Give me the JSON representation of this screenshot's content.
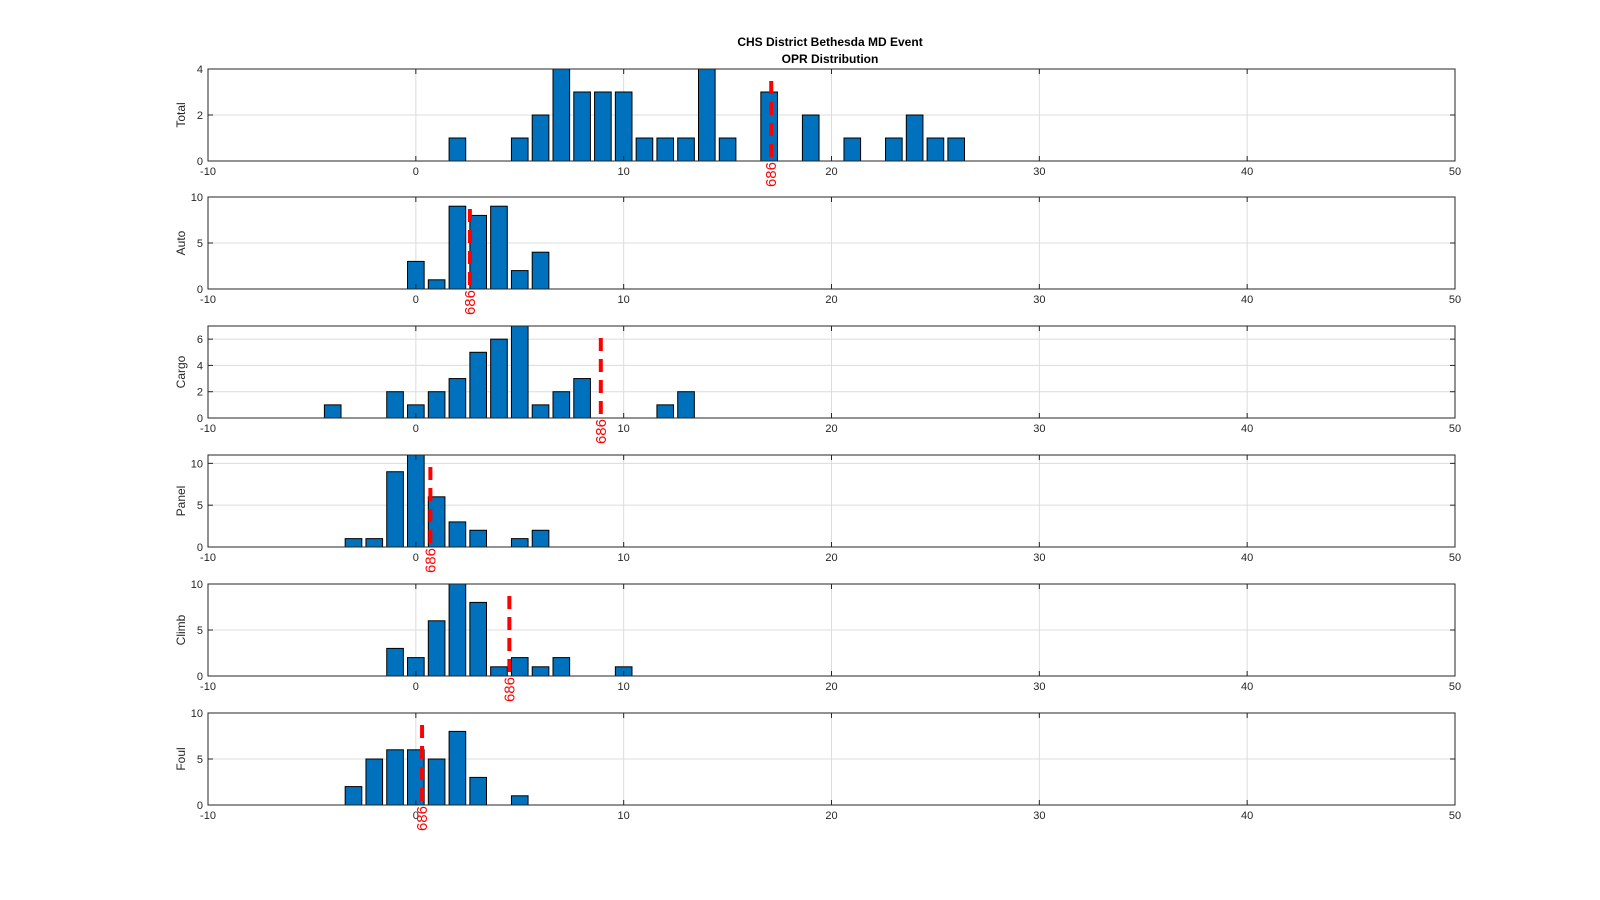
{
  "chart_data": {
    "type": "bar",
    "title": [
      "CHS District Bethesda MD Event",
      "OPR Distribution"
    ],
    "xlim": [
      -10,
      50
    ],
    "xticks": [
      -10,
      0,
      10,
      20,
      30,
      40,
      50
    ],
    "bin_width": 1,
    "grid": "on",
    "bar_color": "#0072bd",
    "marker_color": "#ff0000",
    "marker_label": "686",
    "subplots": [
      {
        "ylabel": "Total",
        "ylim": [
          0,
          4
        ],
        "yticks": [
          0,
          2,
          4
        ],
        "marker_x": 17.1,
        "bars": [
          {
            "x": 2,
            "y": 1
          },
          {
            "x": 5,
            "y": 1
          },
          {
            "x": 6,
            "y": 2
          },
          {
            "x": 7,
            "y": 4
          },
          {
            "x": 8,
            "y": 3
          },
          {
            "x": 9,
            "y": 3
          },
          {
            "x": 10,
            "y": 3
          },
          {
            "x": 11,
            "y": 1
          },
          {
            "x": 12,
            "y": 1
          },
          {
            "x": 13,
            "y": 1
          },
          {
            "x": 14,
            "y": 4
          },
          {
            "x": 15,
            "y": 1
          },
          {
            "x": 17,
            "y": 3
          },
          {
            "x": 19,
            "y": 2
          },
          {
            "x": 21,
            "y": 1
          },
          {
            "x": 23,
            "y": 1
          },
          {
            "x": 24,
            "y": 2
          },
          {
            "x": 25,
            "y": 1
          },
          {
            "x": 26,
            "y": 1
          }
        ]
      },
      {
        "ylabel": "Auto",
        "ylim": [
          0,
          10
        ],
        "yticks": [
          0,
          5,
          10
        ],
        "marker_x": 2.6,
        "bars": [
          {
            "x": 0,
            "y": 3
          },
          {
            "x": 1,
            "y": 1
          },
          {
            "x": 2,
            "y": 9
          },
          {
            "x": 3,
            "y": 8
          },
          {
            "x": 4,
            "y": 9
          },
          {
            "x": 5,
            "y": 2
          },
          {
            "x": 6,
            "y": 4
          }
        ]
      },
      {
        "ylabel": "Cargo",
        "ylim": [
          0,
          7
        ],
        "yticks": [
          0,
          2,
          4,
          6
        ],
        "marker_x": 8.9,
        "bars": [
          {
            "x": -4,
            "y": 1
          },
          {
            "x": -1,
            "y": 2
          },
          {
            "x": 0,
            "y": 1
          },
          {
            "x": 1,
            "y": 2
          },
          {
            "x": 2,
            "y": 3
          },
          {
            "x": 3,
            "y": 5
          },
          {
            "x": 4,
            "y": 6
          },
          {
            "x": 5,
            "y": 7
          },
          {
            "x": 6,
            "y": 1
          },
          {
            "x": 7,
            "y": 2
          },
          {
            "x": 8,
            "y": 3
          },
          {
            "x": 12,
            "y": 1
          },
          {
            "x": 13,
            "y": 2
          }
        ]
      },
      {
        "ylabel": "Panel",
        "ylim": [
          0,
          11
        ],
        "yticks": [
          0,
          5,
          10
        ],
        "marker_x": 0.7,
        "bars": [
          {
            "x": -3,
            "y": 1
          },
          {
            "x": -2,
            "y": 1
          },
          {
            "x": -1,
            "y": 9
          },
          {
            "x": 0,
            "y": 11
          },
          {
            "x": 1,
            "y": 6
          },
          {
            "x": 2,
            "y": 3
          },
          {
            "x": 3,
            "y": 2
          },
          {
            "x": 5,
            "y": 1
          },
          {
            "x": 6,
            "y": 2
          }
        ]
      },
      {
        "ylabel": "Climb",
        "ylim": [
          0,
          10
        ],
        "yticks": [
          0,
          5,
          10
        ],
        "marker_x": 4.5,
        "bars": [
          {
            "x": -1,
            "y": 3
          },
          {
            "x": 0,
            "y": 2
          },
          {
            "x": 1,
            "y": 6
          },
          {
            "x": 2,
            "y": 10
          },
          {
            "x": 3,
            "y": 8
          },
          {
            "x": 4,
            "y": 1
          },
          {
            "x": 5,
            "y": 2
          },
          {
            "x": 6,
            "y": 1
          },
          {
            "x": 7,
            "y": 2
          },
          {
            "x": 10,
            "y": 1
          }
        ]
      },
      {
        "ylabel": "Foul",
        "ylim": [
          0,
          10
        ],
        "yticks": [
          0,
          5,
          10
        ],
        "marker_x": 0.3,
        "bars": [
          {
            "x": -3,
            "y": 2
          },
          {
            "x": -2,
            "y": 5
          },
          {
            "x": -1,
            "y": 6
          },
          {
            "x": 0,
            "y": 6
          },
          {
            "x": 1,
            "y": 5
          },
          {
            "x": 2,
            "y": 8
          },
          {
            "x": 3,
            "y": 3
          },
          {
            "x": 5,
            "y": 1
          }
        ]
      }
    ]
  }
}
